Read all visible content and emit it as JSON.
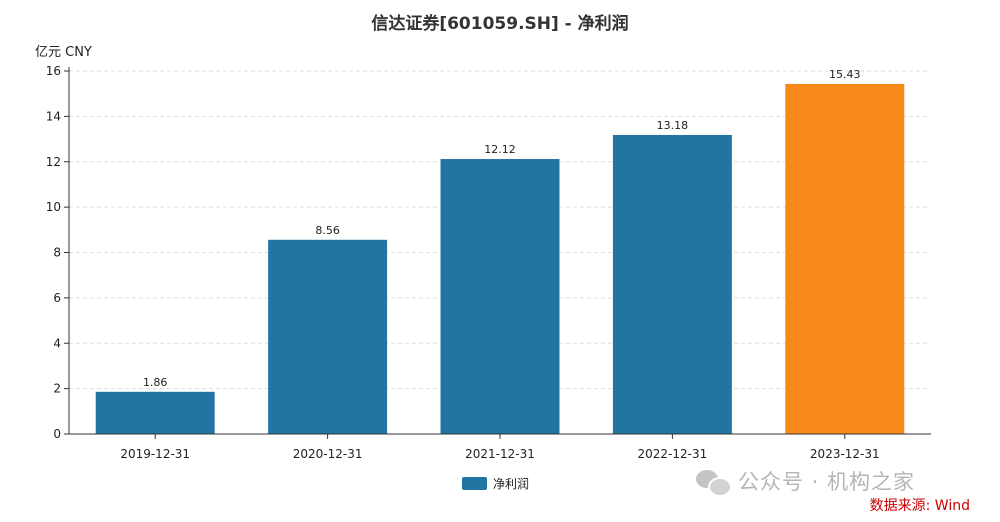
{
  "chart_data": {
    "type": "bar",
    "title": "信达证券[601059.SH] - 净利润",
    "unit_label": "亿元  CNY",
    "categories": [
      "2019-12-31",
      "2020-12-31",
      "2021-12-31",
      "2022-12-31",
      "2023-12-31"
    ],
    "series": [
      {
        "name": "净利润",
        "values": [
          1.86,
          8.56,
          12.12,
          13.18,
          15.43
        ],
        "data_labels": [
          "1.86",
          "8.56",
          "12.12",
          "13.18",
          "15.43"
        ],
        "color": "#2275a3",
        "highlight_color": "#f7891b",
        "highlight_index": 4
      }
    ],
    "ylim": [
      0,
      16
    ],
    "yticks": [
      0,
      2,
      4,
      6,
      8,
      10,
      12,
      14,
      16
    ],
    "ytick_labels": [
      "0",
      "2",
      "4",
      "6",
      "8",
      "10",
      "12",
      "14",
      "16"
    ],
    "grid": true,
    "legend_position": "bottom-center"
  },
  "watermark": {
    "text": "公众号 · 机构之家"
  },
  "source": {
    "text": "数据来源: Wind"
  }
}
